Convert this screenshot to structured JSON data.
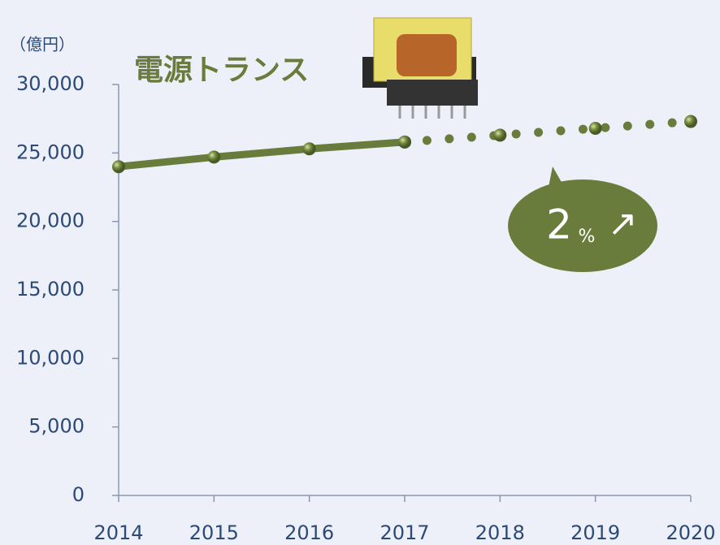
{
  "chart_data": {
    "type": "line",
    "title": "電源トランス",
    "unit_label": "（億円）",
    "categories": [
      "2014",
      "2015",
      "2016",
      "2017",
      "2018",
      "2019",
      "2020"
    ],
    "series": [
      {
        "color": "#6a7c3c",
        "line_style": "solid",
        "values": [
          24000,
          24700,
          25300,
          25800,
          null,
          null,
          null
        ]
      },
      {
        "color": "#6a7c3c",
        "line_style": "dotted",
        "values": [
          null,
          null,
          null,
          25800,
          26300,
          26800,
          27300
        ]
      }
    ],
    "ylim": [
      0,
      30000
    ],
    "yticks": [
      0,
      {
        "value": 5000,
        "label": "5,000"
      },
      {
        "value": 10000,
        "label": "10,000"
      },
      {
        "value": 15000,
        "label": "15,000"
      },
      {
        "value": 20000,
        "label": "20,000"
      },
      {
        "value": 25000,
        "label": "25,000"
      },
      {
        "value": 30000,
        "label": "30,000"
      }
    ],
    "annotation": {
      "text": "2",
      "unit": "%",
      "arrow": "↗"
    }
  }
}
